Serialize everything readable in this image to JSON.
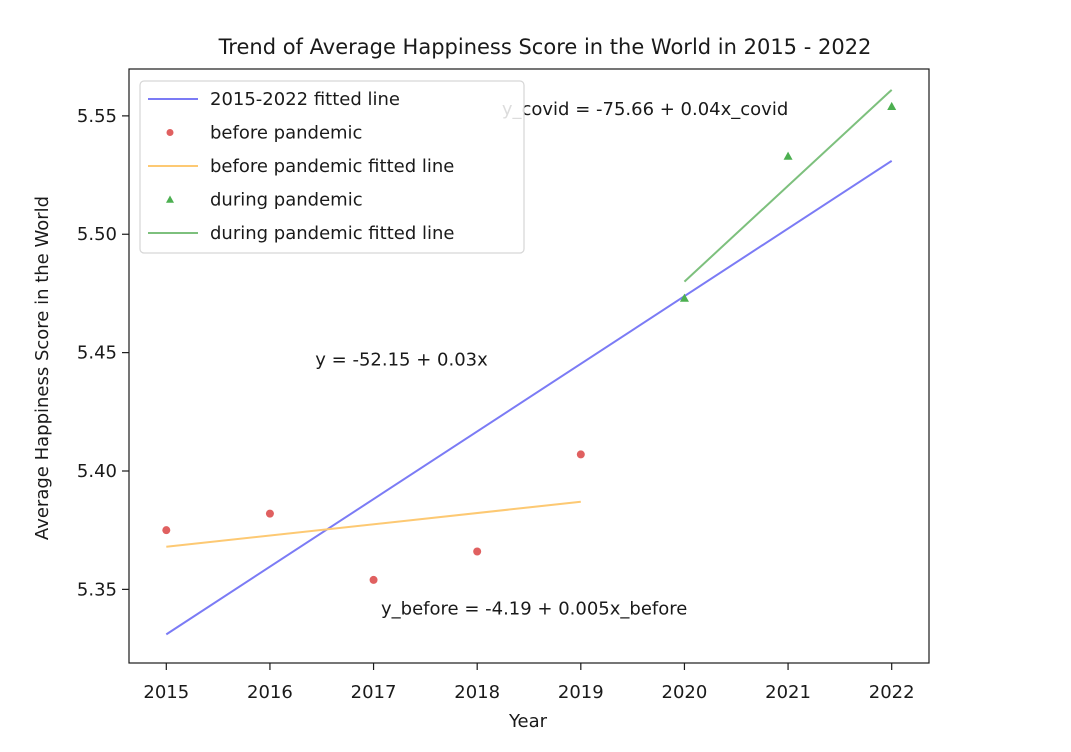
{
  "chart_data": {
    "type": "scatter",
    "title": "Trend of Average Happiness Score in the World in 2015 - 2022",
    "xlabel": "Year",
    "ylabel": "Average Happiness Score in the World",
    "xlim": [
      2014.64,
      2022.36
    ],
    "ylim": [
      5.3189,
      5.5698
    ],
    "xticks": [
      2015,
      2016,
      2017,
      2018,
      2019,
      2020,
      2021,
      2022
    ],
    "yticks": [
      5.35,
      5.4,
      5.45,
      5.5,
      5.55
    ],
    "grid": false,
    "legend_position": "top-left",
    "series": [
      {
        "name": "2015-2022 fitted line",
        "kind": "line",
        "color": "#7b7bf5",
        "x": [
          2015,
          2022
        ],
        "y": [
          5.331,
          5.531
        ]
      },
      {
        "name": "before pandemic",
        "kind": "scatter",
        "marker": "circle",
        "color": "#e06060",
        "x": [
          2015,
          2016,
          2017,
          2018,
          2019
        ],
        "y": [
          5.375,
          5.382,
          5.354,
          5.366,
          5.407
        ]
      },
      {
        "name": "before pandemic fitted line",
        "kind": "line",
        "color": "#fdc973",
        "x": [
          2015,
          2019
        ],
        "y": [
          5.368,
          5.387
        ]
      },
      {
        "name": "during pandemic",
        "kind": "scatter",
        "marker": "triangle",
        "color": "#4caf50",
        "x": [
          2020,
          2021,
          2022
        ],
        "y": [
          5.473,
          5.533,
          5.554
        ]
      },
      {
        "name": "during pandemic fitted line",
        "kind": "line",
        "color": "#7dc07d",
        "x": [
          2020,
          2022
        ],
        "y": [
          5.48,
          5.561
        ]
      }
    ],
    "annotations": [
      {
        "text": "y_covid = -75.66 + 0.04x_covid",
        "x": 2019.62,
        "y": 5.553
      },
      {
        "text": "y = -52.15 + 0.03x",
        "x": 2017.27,
        "y": 5.447
      },
      {
        "text": "y_before = -4.19 + 0.005x_before",
        "x": 2018.55,
        "y": 5.342
      }
    ]
  }
}
